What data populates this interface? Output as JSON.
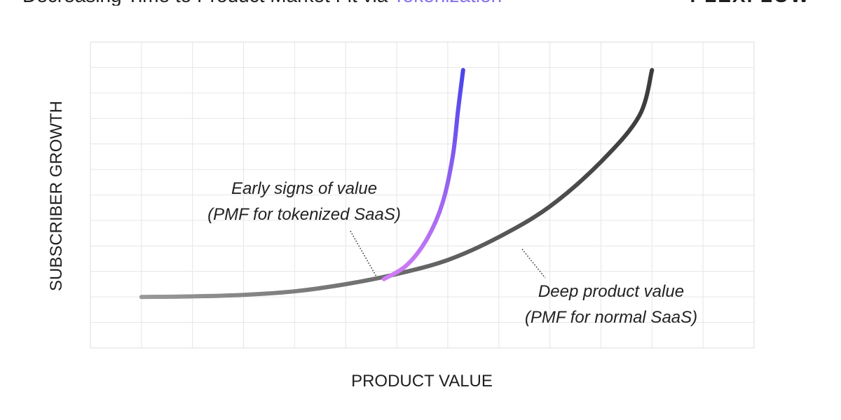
{
  "header": {
    "title_main": "Decreasing Time to Product Market Fit via ",
    "title_highlight": "Tokenization",
    "brand": "PLEXFLOW"
  },
  "colors": {
    "tokenized_start": "#d17cf5",
    "tokenized_end": "#4743ec",
    "normal_start": "#999999",
    "normal_end": "#3c3c3c",
    "grid": "#e6e6e6",
    "plot_border": "#dedede"
  },
  "chart_data": {
    "type": "line",
    "xlabel": "PRODUCT VALUE",
    "ylabel": "SUBSCRIBER GROWTH",
    "xlim": [
      0,
      13
    ],
    "ylim": [
      0,
      12
    ],
    "grid": true,
    "series": [
      {
        "id": "normal",
        "points": [
          [
            1,
            2
          ],
          [
            2,
            2.02
          ],
          [
            3,
            2.08
          ],
          [
            4,
            2.22
          ],
          [
            5,
            2.5
          ],
          [
            6,
            2.9
          ],
          [
            7,
            3.45
          ],
          [
            8,
            4.35
          ],
          [
            9,
            5.55
          ],
          [
            10,
            7.3
          ],
          [
            10.75,
            9.1
          ],
          [
            11,
            10.9
          ]
        ]
      },
      {
        "id": "tokenized",
        "points": [
          [
            5.75,
            2.7
          ],
          [
            6.2,
            3.25
          ],
          [
            6.6,
            4.3
          ],
          [
            6.9,
            5.7
          ],
          [
            7.1,
            7.55
          ],
          [
            7.2,
            9.3
          ],
          [
            7.3,
            10.9
          ]
        ]
      }
    ],
    "annotations": [
      {
        "id": "tokenized-pmf",
        "line1": "Early signs of value",
        "line2": "(PMF for tokenized SaaS)",
        "target": [
          5.75,
          2.75
        ]
      },
      {
        "id": "normal-pmf",
        "line1": "Deep product value",
        "line2": "(PMF for normal SaaS)",
        "target": [
          8.5,
          4.0
        ]
      }
    ]
  }
}
